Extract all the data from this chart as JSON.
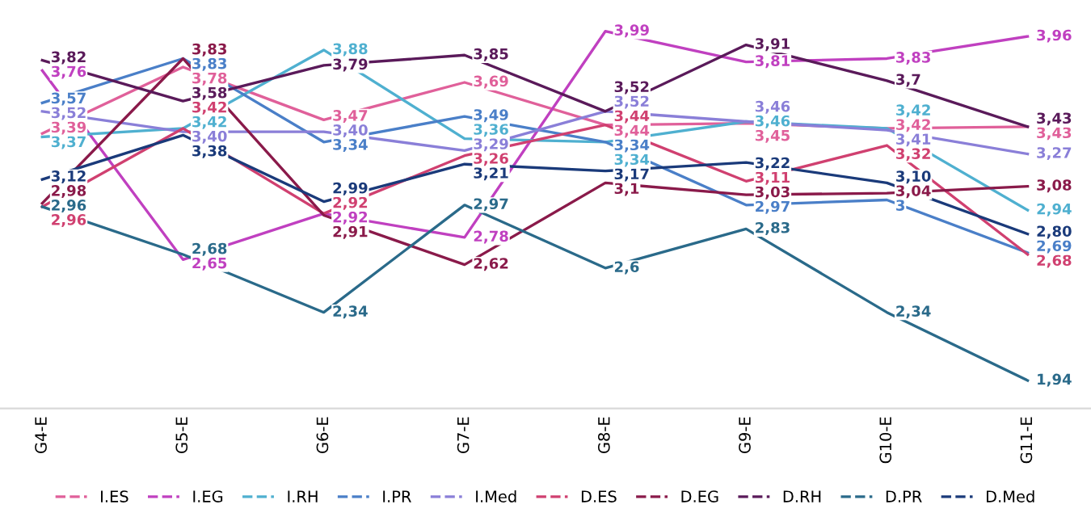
{
  "chart_data": {
    "type": "line",
    "categories": [
      "G4-E",
      "G5-E",
      "G6-E",
      "G7-E",
      "G8-E",
      "G9-E",
      "G10-E",
      "G11-E"
    ],
    "series": [
      {
        "name": "I.ES",
        "color": "#e0609a",
        "values": [
          3.39,
          3.78,
          3.47,
          3.69,
          3.44,
          3.45,
          3.42,
          3.43
        ],
        "value_labels": [
          "3,39",
          "3,78",
          "3,47",
          "3,69",
          "3,44",
          "3,45",
          "3,42",
          "3,43"
        ]
      },
      {
        "name": "I.EG",
        "color": "#c040c0",
        "values": [
          3.76,
          2.65,
          2.92,
          2.78,
          3.99,
          3.81,
          3.83,
          3.96
        ],
        "value_labels": [
          "3,76",
          "2,65",
          "2,92",
          "2,78",
          "3,99",
          "3,81",
          "3,83",
          "3,96"
        ]
      },
      {
        "name": "I.RH",
        "color": "#4fb0d0",
        "values": [
          3.37,
          3.42,
          3.88,
          3.36,
          3.34,
          3.46,
          3.42,
          2.94
        ],
        "value_labels": [
          "3,37",
          "3,42",
          "3,88",
          "3,36",
          "3,34",
          "3,46",
          "3,42",
          "2,94"
        ]
      },
      {
        "name": "I.PR",
        "color": "#4a7fc8",
        "values": [
          3.57,
          3.83,
          3.34,
          3.49,
          3.34,
          2.97,
          3,
          2.69
        ],
        "value_labels": [
          "3,57",
          "3,83",
          "3,34",
          "3,49",
          "3,34",
          "2,97",
          "3",
          "2,69"
        ]
      },
      {
        "name": "I.Med",
        "color": "#8a7fd8",
        "values": [
          3.52,
          3.4,
          3.4,
          3.29,
          3.52,
          3.46,
          3.41,
          3.27
        ],
        "value_labels": [
          "3,52",
          "3,40",
          "3,40",
          "3,29",
          "3,52",
          "3,46",
          "3,41",
          "3,27"
        ]
      },
      {
        "name": "D.ES",
        "color": "#d04070",
        "values": [
          2.96,
          3.42,
          2.92,
          3.26,
          3.44,
          3.11,
          3.32,
          2.68
        ],
        "value_labels": [
          "2,96",
          "3,42",
          "2,92",
          "3,26",
          "3,44",
          "3,11",
          "3,32",
          "2,68"
        ]
      },
      {
        "name": "D.EG",
        "color": "#8a1a4a",
        "values": [
          2.98,
          3.83,
          2.91,
          2.62,
          3.1,
          3.03,
          3.04,
          3.08
        ],
        "value_labels": [
          "2,98",
          "3,83",
          "2,91",
          "2,62",
          "3,1",
          "3,03",
          "3,04",
          "3,08"
        ]
      },
      {
        "name": "D.RH",
        "color": "#5a1a5a",
        "values": [
          3.82,
          3.58,
          3.79,
          3.85,
          3.52,
          3.91,
          3.7,
          3.43
        ],
        "value_labels": [
          "3,82",
          "3,58",
          "3,79",
          "3,85",
          "3,52",
          "3,91",
          "3,7",
          "3,43"
        ]
      },
      {
        "name": "D.PR",
        "color": "#2a6a8a",
        "values": [
          2.96,
          2.68,
          2.34,
          2.97,
          2.6,
          2.83,
          2.34,
          1.94
        ],
        "value_labels": [
          "2,96",
          "2,68",
          "2,34",
          "2,97",
          "2,6",
          "2,83",
          "2,34",
          "1,94"
        ]
      },
      {
        "name": "D.Med",
        "color": "#1a3a7a",
        "values": [
          3.12,
          3.38,
          2.99,
          3.21,
          3.17,
          3.22,
          3.1,
          2.8
        ],
        "value_labels": [
          "3,12",
          "3,38",
          "2,99",
          "3,21",
          "3,17",
          "3,22",
          "3,10",
          "2,80"
        ]
      }
    ],
    "grid": false,
    "legend": "bottom",
    "line_style": "solid"
  }
}
